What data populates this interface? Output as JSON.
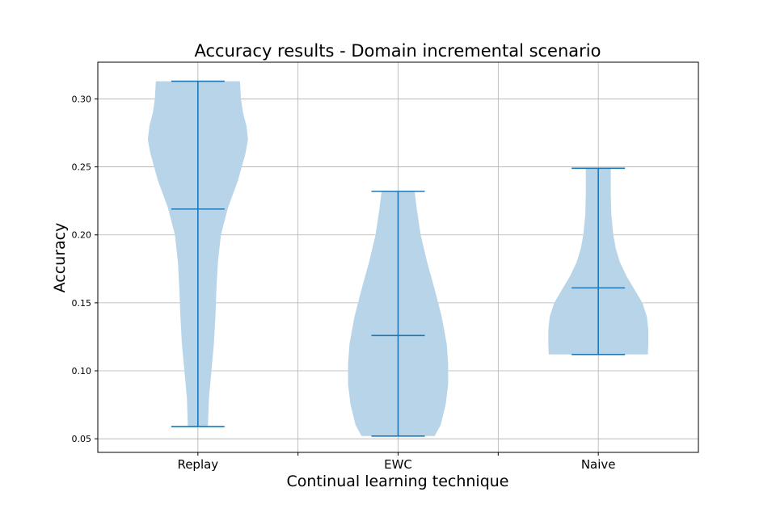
{
  "chart_data": {
    "type": "violin",
    "title": "Accuracy results - Domain incremental scenario",
    "xlabel": "Continual learning technique",
    "ylabel": "Accuracy",
    "categories": [
      "Replay",
      "EWC",
      "Naive"
    ],
    "ylim": [
      0.04,
      0.327
    ],
    "yticks": [
      0.05,
      0.1,
      0.15,
      0.2,
      0.25,
      0.3
    ],
    "ytick_labels": [
      "0.05",
      "0.10",
      "0.15",
      "0.20",
      "0.25",
      "0.30"
    ],
    "grid": true,
    "colors": {
      "body": "#b8d4e8",
      "line": "#1f77b4",
      "grid": "#b0b0b0"
    },
    "violins": [
      {
        "name": "Replay",
        "min": 0.059,
        "median": 0.219,
        "max": 0.313,
        "profile": [
          [
            0.059,
            0.2
          ],
          [
            0.08,
            0.22
          ],
          [
            0.1,
            0.27
          ],
          [
            0.12,
            0.32
          ],
          [
            0.14,
            0.35
          ],
          [
            0.16,
            0.37
          ],
          [
            0.18,
            0.4
          ],
          [
            0.2,
            0.46
          ],
          [
            0.22,
            0.6
          ],
          [
            0.24,
            0.8
          ],
          [
            0.26,
            0.95
          ],
          [
            0.27,
            1.0
          ],
          [
            0.28,
            0.97
          ],
          [
            0.29,
            0.9
          ],
          [
            0.3,
            0.86
          ],
          [
            0.313,
            0.84
          ]
        ]
      },
      {
        "name": "EWC",
        "min": 0.052,
        "median": 0.126,
        "max": 0.232,
        "profile": [
          [
            0.052,
            0.73
          ],
          [
            0.06,
            0.85
          ],
          [
            0.075,
            0.95
          ],
          [
            0.09,
            1.0
          ],
          [
            0.105,
            1.0
          ],
          [
            0.12,
            0.97
          ],
          [
            0.14,
            0.87
          ],
          [
            0.16,
            0.73
          ],
          [
            0.18,
            0.58
          ],
          [
            0.2,
            0.45
          ],
          [
            0.22,
            0.37
          ],
          [
            0.232,
            0.33
          ]
        ]
      },
      {
        "name": "Naive",
        "min": 0.112,
        "median": 0.161,
        "max": 0.249,
        "profile": [
          [
            0.112,
            0.99
          ],
          [
            0.12,
            1.0
          ],
          [
            0.13,
            1.0
          ],
          [
            0.14,
            0.97
          ],
          [
            0.15,
            0.88
          ],
          [
            0.16,
            0.72
          ],
          [
            0.17,
            0.56
          ],
          [
            0.18,
            0.43
          ],
          [
            0.19,
            0.35
          ],
          [
            0.2,
            0.3
          ],
          [
            0.215,
            0.26
          ],
          [
            0.23,
            0.25
          ],
          [
            0.249,
            0.25
          ]
        ]
      }
    ]
  }
}
